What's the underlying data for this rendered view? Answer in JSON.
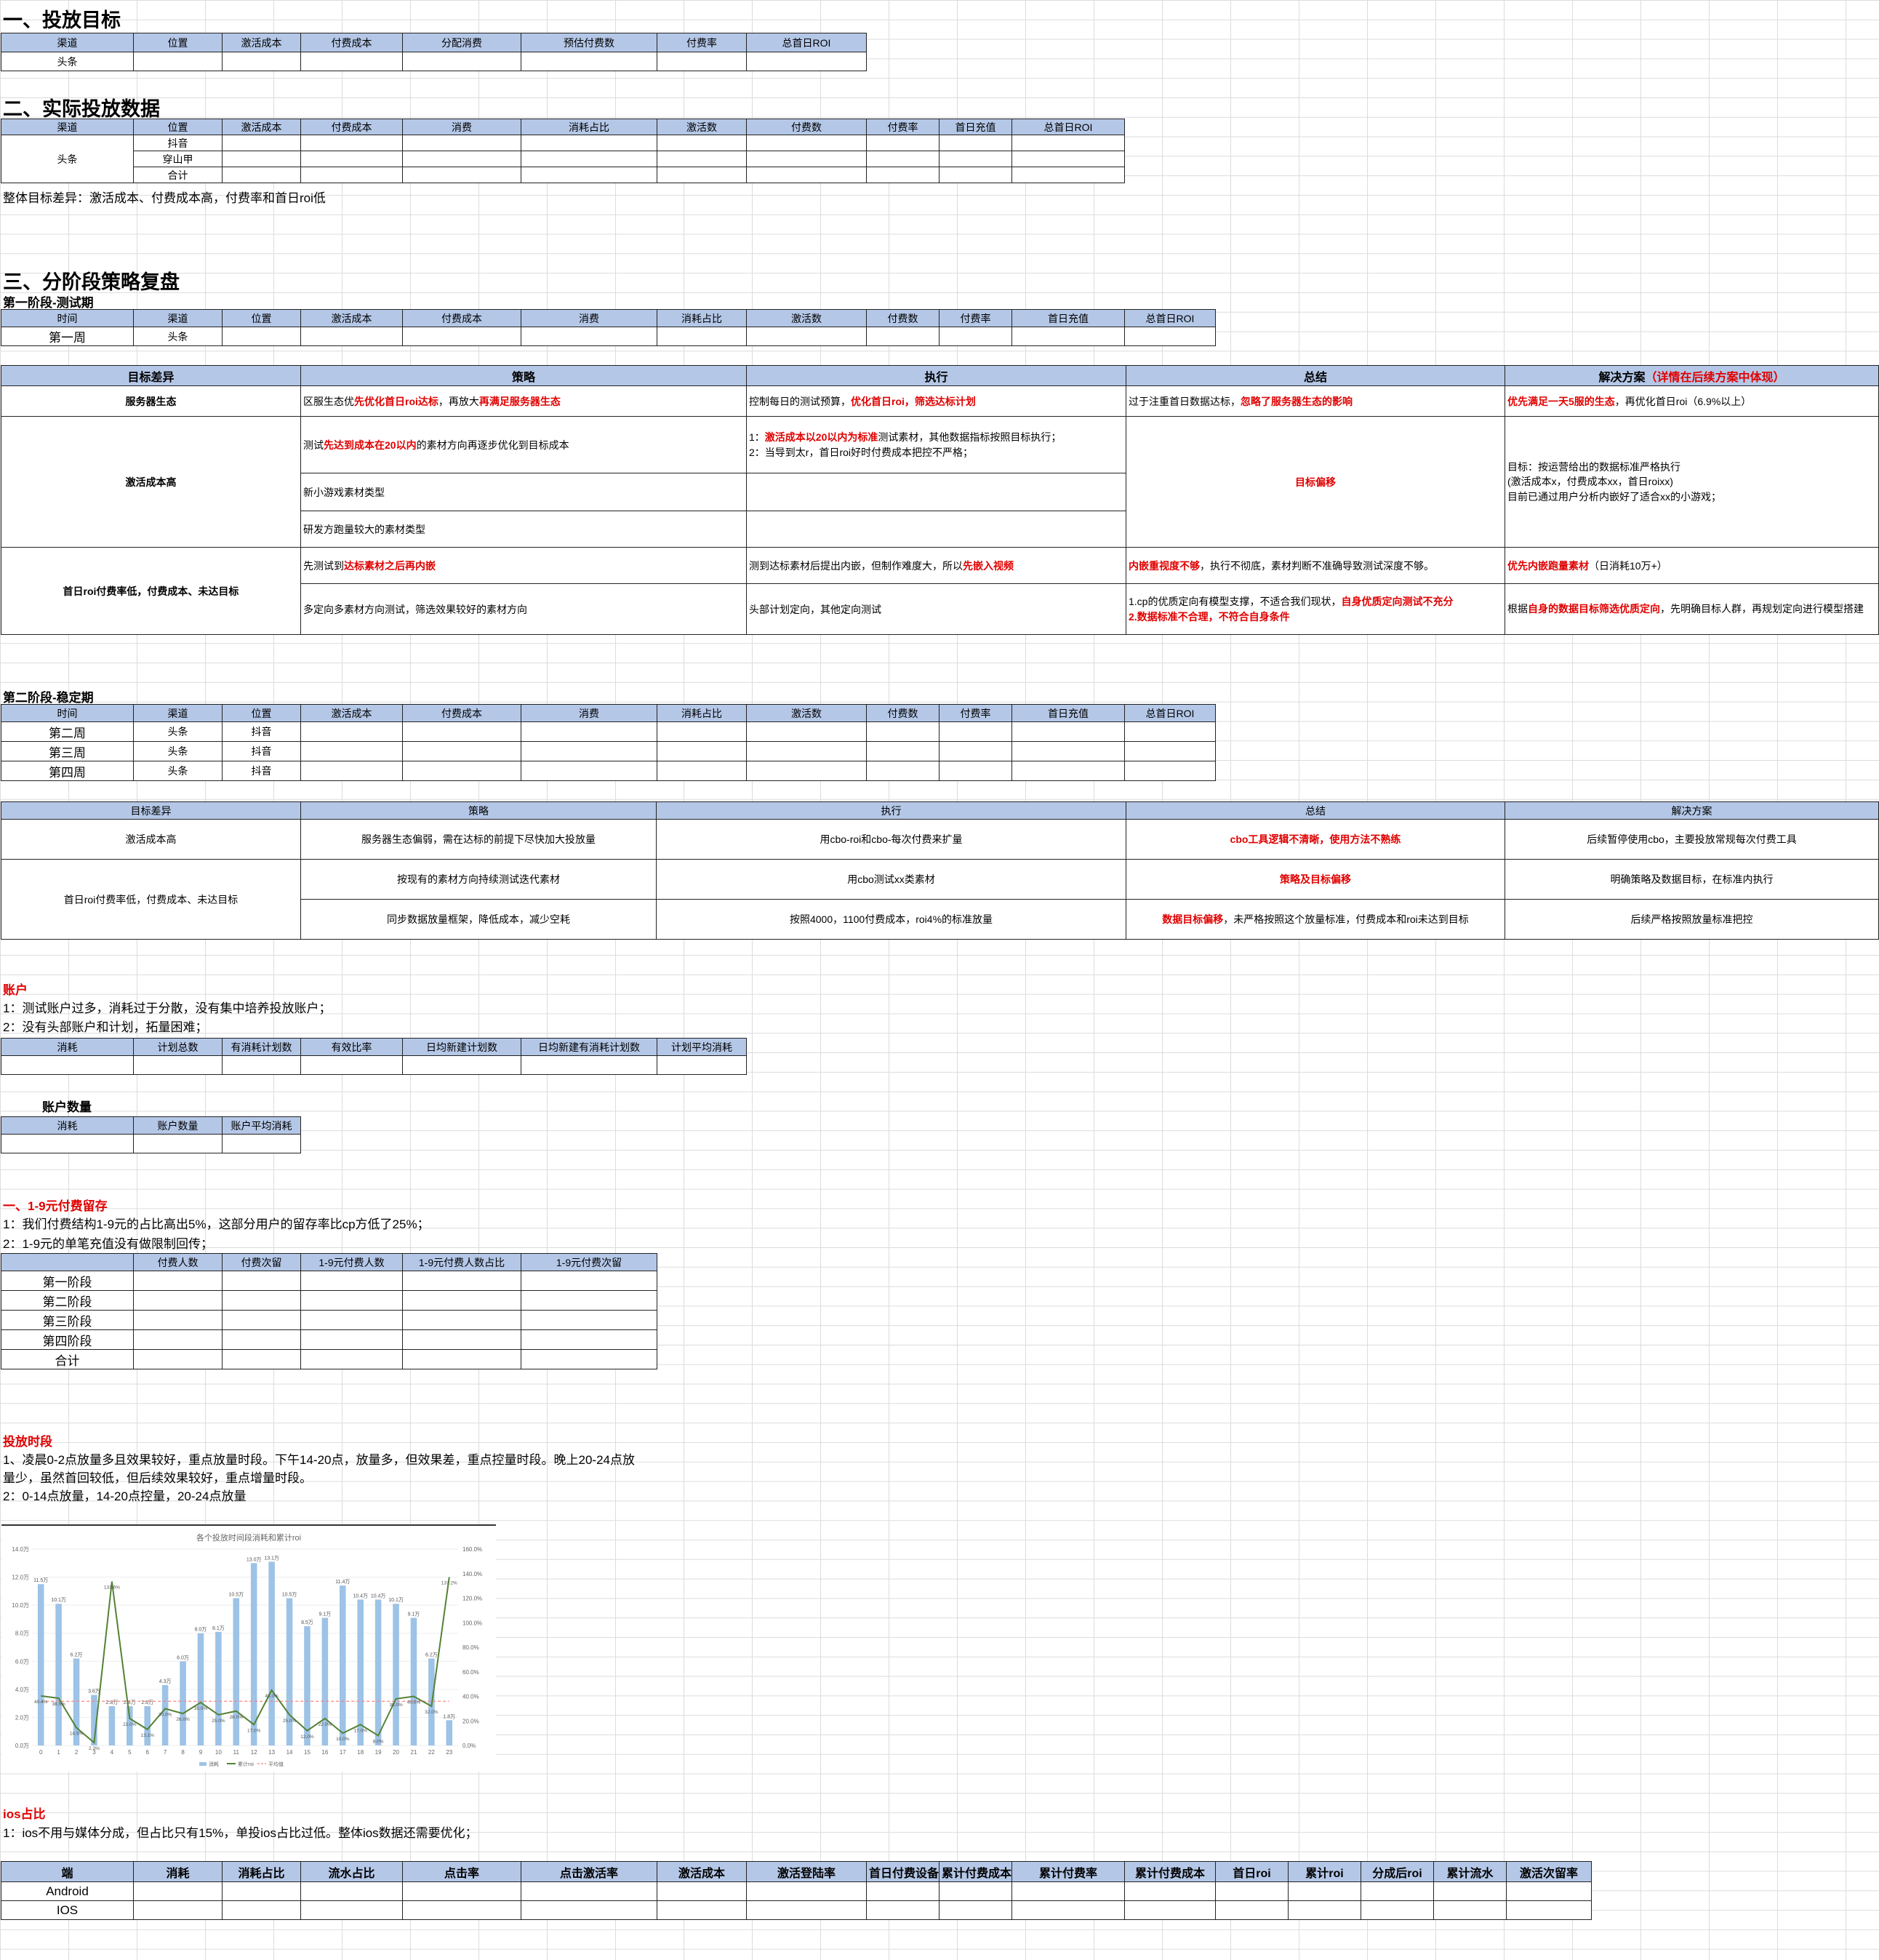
{
  "s1": {
    "title": "一、投放目标",
    "headers": [
      "渠道",
      "位置",
      "激活成本",
      "付费成本",
      "分配消费",
      "预估付费数",
      "付费率",
      "总首日ROI"
    ],
    "row": [
      "头条",
      "",
      "",
      "",
      "",
      "",
      "",
      ""
    ]
  },
  "s2": {
    "title": "二、实际投放数据",
    "headers": [
      "渠道",
      "位置",
      "激活成本",
      "付费成本",
      "消费",
      "消耗占比",
      "激活数",
      "付费数",
      "付费率",
      "首日充值",
      "总首日ROI"
    ],
    "channel": "头条",
    "positions": [
      "抖音",
      "穿山甲",
      "合计"
    ],
    "note": "整体目标差异：激活成本、付费成本高，付费率和首日roi低"
  },
  "s3": {
    "title": "三、分阶段策略复盘",
    "phase1": {
      "title": "第一阶段-测试期",
      "headers": [
        "时间",
        "渠道",
        "位置",
        "激活成本",
        "付费成本",
        "消费",
        "消耗占比",
        "激活数",
        "付费数",
        "付费率",
        "首日充值",
        "总首日ROI"
      ],
      "row": [
        "第一周",
        "头条"
      ]
    },
    "review1": {
      "headers": [
        "目标差异",
        "策略",
        "执行",
        "总结",
        "解决方案"
      ],
      "header_note": "（详情在后续方案中体现）",
      "server": {
        "label": "服务器生态",
        "strategy": [
          "区服生态优",
          "先优化首日roi达标",
          "，再放大",
          "再满足服务器生态"
        ],
        "exec": [
          "控制每日的测试预算，",
          "优化首日roi，筛选达标计划"
        ],
        "summary": [
          "过于注重首日数据达标，",
          "忽略了服务器生态的影响"
        ],
        "solution": [
          "优先满足一天5服的生态",
          "，再优化首日roi（6.9%以上）"
        ]
      },
      "act": {
        "label": "激活成本高",
        "s1": [
          "测试",
          "先达到成本在20以内",
          "的素材方向再逐步优化到目标成本"
        ],
        "s2": "新小游戏素材类型",
        "s3": "研发方跑量较大的素材类型",
        "e1a": [
          "1：",
          "激活成本以20以内为标准",
          "测试素材，其他数据指标按照目标执行；"
        ],
        "e1b": "2：当导到太r，首日roi好时付费成本把控不严格；",
        "summary": "目标偏移",
        "solution": [
          "目标：按运营给出的数据标准严格执行",
          "(激活成本x，付费成本xx，首日roixx)",
          "目前已通过用户分析内嵌好了适合xx的小游戏；"
        ]
      },
      "roi": {
        "label": "首日roi付费率低，付费成本、未达目标",
        "s1": [
          "先测试到",
          "达标素材之后再内嵌"
        ],
        "s2": "多定向多素材方向测试，筛选效果较好的素材方向",
        "e1": [
          "测到达标素材后提出内嵌，但制作难度大，所以",
          "先嵌入视频"
        ],
        "e2": "头部计划定向，其他定向测试",
        "sum1": [
          "内嵌重视度不够",
          "，执行不彻底，素材判断不准确导致测试深度不够。"
        ],
        "sum2a": [
          "1.cp的优质定向有模型支撑，不适合我们现状，",
          "自身优质定向测试不充分"
        ],
        "sum2b": "2.数据标准不合理，不符合自身条件",
        "sol1": [
          "优先内嵌跑量素材",
          "（日消耗10万+）"
        ],
        "sol2": [
          "根据",
          "自身的数据目标筛选优质定向",
          "，先明确目标人群，再规划定向进行模型搭建"
        ]
      }
    },
    "phase2": {
      "title": "第二阶段-稳定期",
      "rows": [
        [
          "第二周",
          "头条",
          "抖音"
        ],
        [
          "第三周",
          "头条",
          "抖音"
        ],
        [
          "第四周",
          "头条",
          "抖音"
        ]
      ]
    },
    "review2": {
      "headers": [
        "目标差异",
        "策略",
        "执行",
        "总结",
        "解决方案"
      ],
      "r1": {
        "label": "激活成本高",
        "s": "服务器生态偏弱，需在达标的前提下尽快加大投放量",
        "e": "用cbo-roi和cbo-每次付费来扩量",
        "sum": "cbo工具逻辑不清晰，使用方法不熟练",
        "sol": "后续暂停使用cbo，主要投放常规每次付费工具"
      },
      "r2": {
        "label": "首日roi付费率低，付费成本、未达目标",
        "s": "按现有的素材方向持续测试迭代素材",
        "e": "用cbo测试xx类素材",
        "sum": "策略及目标偏移",
        "sol": "明确策略及数据目标，在标准内执行"
      },
      "r3": {
        "s": "同步数据放量框架，降低成本，减少空耗",
        "e": "按照4000，1100付费成本，roi4%的标准放量",
        "sum": [
          "数据目标偏移",
          "，未严格按照这个放量标准，付费成本和roi未达到目标"
        ],
        "sol": "后续严格按照放量标准把控"
      }
    }
  },
  "account": {
    "title": "账户",
    "lines": [
      "1：测试账户过多，消耗过于分散，没有集中培养投放账户；",
      "2：没有头部账户和计划，拓量困难；"
    ],
    "headers": [
      "消耗",
      "计划总数",
      "有消耗计划数",
      "有效比率",
      "日均新建计划数",
      "日均新建有消耗计划数",
      "计划平均消耗"
    ],
    "count": {
      "title": "账户数量",
      "headers": [
        "消耗",
        "账户数量",
        "账户平均消耗"
      ]
    }
  },
  "pay": {
    "title": "一、1-9元付费留存",
    "lines": [
      "1：我们付费结构1-9元的占比高出5%，这部分用户的留存率比cp方低了25%；",
      "2：1-9元的单笔充值没有做限制回传；"
    ],
    "headers": [
      "",
      "付费人数",
      "付费次留",
      "1-9元付费人数",
      "1-9元付费人数占比",
      "1-9元付费次留"
    ],
    "rows": [
      "第一阶段",
      "第二阶段",
      "第三阶段",
      "第四阶段",
      "合计"
    ]
  },
  "period": {
    "title": "投放时段",
    "lines": [
      "1、凌晨0-2点放量多且效果较好，重点放量时段。下午14-20点，放量多，但效果差，重点控量时段。晚上20-24点放",
      "量少，虽然首回较低，但后续效果较好，重点增量时段。",
      "2：0-14点放量，14-20点控量，20-24点放量"
    ]
  },
  "chart_data": {
    "type": "bar",
    "title": "各个投放时间段消耗和累计roi",
    "categories": [
      "0",
      "1",
      "2",
      "3",
      "4",
      "5",
      "6",
      "7",
      "8",
      "9",
      "10",
      "11",
      "12",
      "13",
      "14",
      "15",
      "16",
      "17",
      "18",
      "19",
      "20",
      "21",
      "22",
      "23"
    ],
    "series": [
      {
        "name": "消耗",
        "type": "bar",
        "values": [
          11.5,
          10.1,
          6.2,
          3.6,
          2.8,
          2.8,
          2.8,
          4.3,
          6.0,
          8.0,
          8.1,
          10.5,
          13.0,
          13.1,
          10.5,
          8.5,
          9.1,
          11.4,
          10.4,
          10.4,
          10.1,
          9.1,
          6.2,
          1.8
        ],
        "unit": "万"
      },
      {
        "name": "累计roi",
        "type": "line",
        "values": [
          40.4,
          38.5,
          14.5,
          2.3,
          133.6,
          22.0,
          13.1,
          30.0,
          26.0,
          35.0,
          25.0,
          28.0,
          17.0,
          45.0,
          25.0,
          12.0,
          22.0,
          10.0,
          17.0,
          8.0,
          38.0,
          40.0,
          32.0,
          137.2
        ],
        "unit": "%"
      },
      {
        "name": "平均值",
        "type": "line",
        "values": [
          36,
          36,
          36,
          36,
          36,
          36,
          36,
          36,
          36,
          36,
          36,
          36,
          36,
          36,
          36,
          36,
          36,
          36,
          36,
          36,
          36,
          36,
          36,
          36
        ]
      }
    ],
    "y_left": {
      "min": 0,
      "max": 14,
      "ticks": [
        "0.0万",
        "2.0万",
        "4.0万",
        "6.0万",
        "8.0万",
        "10.0万",
        "12.0万",
        "14.0万"
      ]
    },
    "y_right": {
      "min": 0,
      "max": 160,
      "ticks": [
        "0.0%",
        "20.0%",
        "40.0%",
        "60.0%",
        "80.0%",
        "100.0%",
        "120.0%",
        "140.0%",
        "160.0%"
      ]
    },
    "legend": "bottom",
    "colors": {
      "bar": "#9dc3e6",
      "line": "#548235",
      "avg": "#ff8080"
    }
  },
  "ios": {
    "title": "ios占比",
    "line": "1：ios不用与媒体分成，但占比只有15%，单投ios占比过低。整体ios数据还需要优化；",
    "headers": [
      "端",
      "消耗",
      "消耗占比",
      "流水占比",
      "点击率",
      "点击激活率",
      "激活成本",
      "激活登陆率",
      "首日付费设备",
      "累计付费成本",
      "累计付费率",
      "累计付费成本",
      "首日roi",
      "累计roi",
      "分成后roi",
      "累计流水",
      "激活次留率"
    ],
    "rows": [
      "Android",
      "IOS"
    ]
  }
}
